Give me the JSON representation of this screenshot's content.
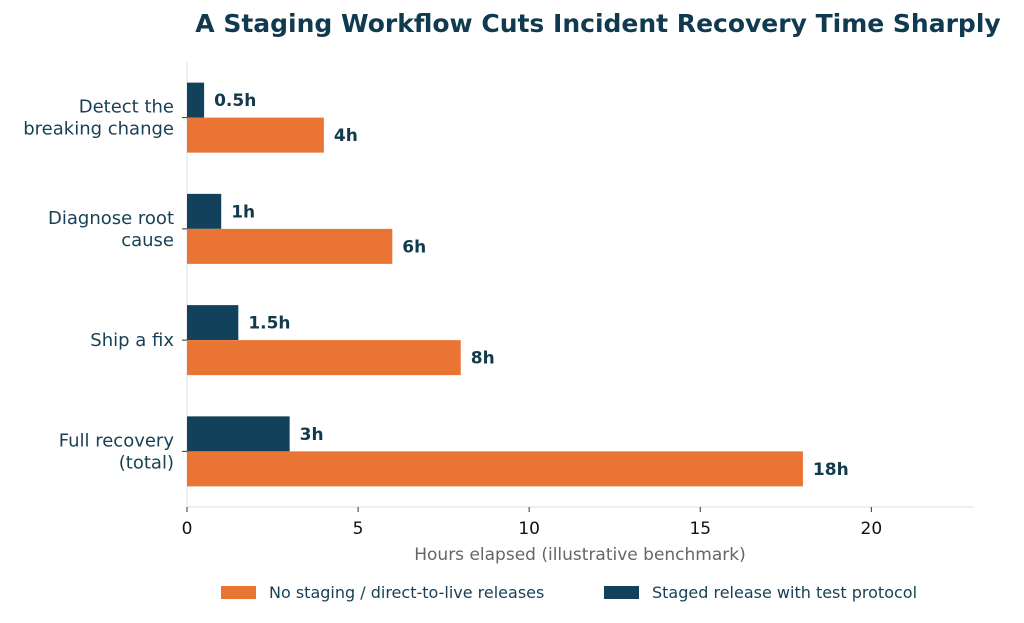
{
  "chart_data": {
    "type": "bar",
    "orientation": "horizontal",
    "title": "A Staging Workflow Cuts Incident Recovery Time Sharply",
    "categories": [
      [
        "Detect the",
        "breaking change"
      ],
      [
        "Diagnose root",
        "cause"
      ],
      [
        "Ship a fix"
      ],
      [
        "Full recovery",
        "(total)"
      ]
    ],
    "series": [
      {
        "name": "Staged release with test protocol",
        "color": "#12425b",
        "values": [
          0.5,
          1,
          1.5,
          3
        ],
        "labels": [
          "0.5h",
          "1h",
          "1.5h",
          "3h"
        ]
      },
      {
        "name": "No staging / direct-to-live releases",
        "color": "#ea7433",
        "values": [
          4,
          6,
          8,
          18
        ],
        "labels": [
          "4h",
          "6h",
          "8h",
          "18h"
        ]
      }
    ],
    "xlabel": "Hours elapsed (illustrative benchmark)",
    "ylabel": "",
    "xlim": [
      0,
      23
    ],
    "xticks": [
      0,
      5,
      10,
      15,
      20
    ],
    "grid": false,
    "legend": {
      "position": "bottom",
      "order": [
        "No staging / direct-to-live releases",
        "Staged release with test protocol"
      ]
    }
  }
}
